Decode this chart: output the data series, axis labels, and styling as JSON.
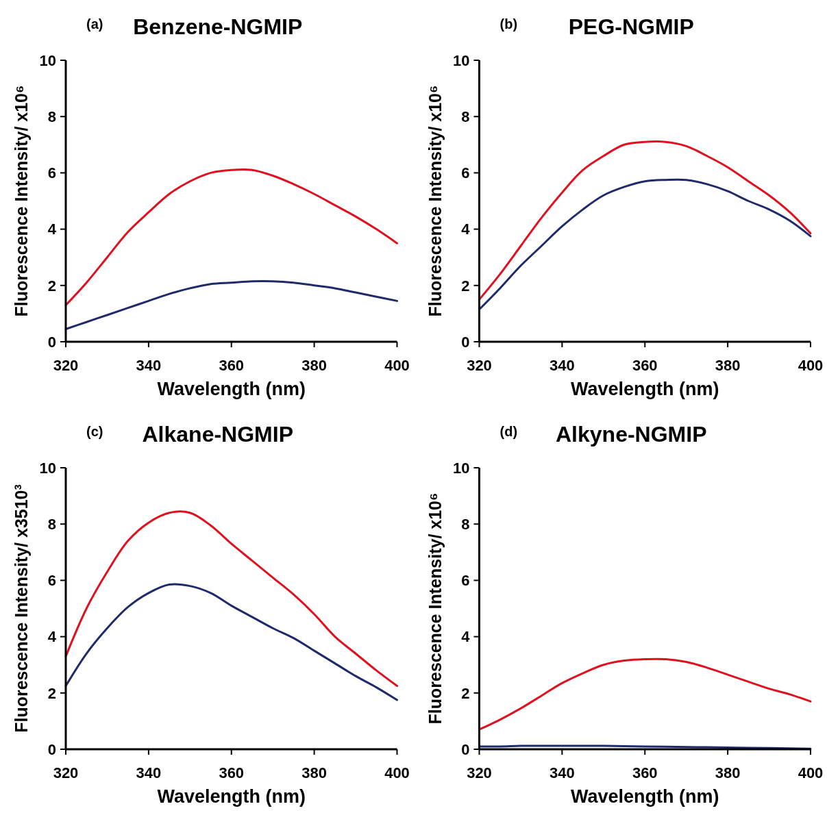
{
  "chart_data": [
    {
      "type": "line",
      "title": "Benzene-NGMIP",
      "annotations": [
        "(a)"
      ],
      "xlabel": "Wavelength (nm)",
      "ylabel": "Fluorescence Intensity/ x10⁶",
      "x": [
        320,
        325,
        330,
        335,
        340,
        345,
        350,
        355,
        360,
        365,
        370,
        375,
        380,
        385,
        390,
        395,
        400
      ],
      "xlim": [
        320,
        400
      ],
      "xticks": [
        320,
        340,
        360,
        380,
        400
      ],
      "ylim": [
        0,
        10
      ],
      "yticks": [
        0,
        2,
        4,
        6,
        8,
        10
      ],
      "grid": false,
      "marker": "none",
      "series": [
        {
          "color": "#e0101e",
          "values": [
            1.3,
            2.1,
            3.0,
            3.9,
            4.6,
            5.25,
            5.7,
            6.0,
            6.1,
            6.1,
            5.9,
            5.6,
            5.25,
            4.85,
            4.45,
            4.0,
            3.5
          ]
        },
        {
          "color": "#1f2a6b",
          "values": [
            0.45,
            0.7,
            0.95,
            1.2,
            1.45,
            1.7,
            1.9,
            2.05,
            2.1,
            2.15,
            2.15,
            2.1,
            2.0,
            1.9,
            1.75,
            1.6,
            1.45
          ]
        }
      ]
    },
    {
      "type": "line",
      "title": "PEG-NGMIP",
      "annotations": [
        "(b)"
      ],
      "xlabel": "Wavelength (nm)",
      "ylabel": "Fluorescence Intensity/ x10⁶",
      "x": [
        320,
        325,
        330,
        335,
        340,
        345,
        350,
        355,
        360,
        365,
        370,
        375,
        380,
        385,
        390,
        395,
        400
      ],
      "xlim": [
        320,
        400
      ],
      "xticks": [
        320,
        340,
        360,
        380,
        400
      ],
      "ylim": [
        0,
        10
      ],
      "yticks": [
        0,
        2,
        4,
        6,
        8,
        10
      ],
      "grid": false,
      "marker": "none",
      "series": [
        {
          "color": "#e0101e",
          "values": [
            1.5,
            2.4,
            3.4,
            4.4,
            5.3,
            6.1,
            6.6,
            7.0,
            7.1,
            7.1,
            6.95,
            6.6,
            6.2,
            5.7,
            5.2,
            4.6,
            3.85
          ]
        },
        {
          "color": "#1f2a6b",
          "values": [
            1.15,
            1.9,
            2.7,
            3.4,
            4.1,
            4.7,
            5.2,
            5.5,
            5.7,
            5.75,
            5.75,
            5.6,
            5.35,
            5.0,
            4.7,
            4.3,
            3.75
          ]
        }
      ]
    },
    {
      "type": "line",
      "title": "Alkane-NGMIP",
      "annotations": [
        "(c)"
      ],
      "xlabel": "Wavelength (nm)",
      "ylabel": "Fluorescence Intensity/ x3510³",
      "x": [
        320,
        325,
        330,
        335,
        340,
        345,
        350,
        355,
        360,
        365,
        370,
        375,
        380,
        385,
        390,
        395,
        400
      ],
      "xlim": [
        320,
        400
      ],
      "xticks": [
        320,
        340,
        360,
        380,
        400
      ],
      "ylim": [
        0,
        10
      ],
      "yticks": [
        0,
        2,
        4,
        6,
        8,
        10
      ],
      "grid": false,
      "marker": "none",
      "series": [
        {
          "color": "#e0101e",
          "values": [
            3.3,
            5.0,
            6.3,
            7.4,
            8.05,
            8.4,
            8.4,
            7.95,
            7.3,
            6.7,
            6.1,
            5.5,
            4.8,
            4.0,
            3.4,
            2.8,
            2.25
          ]
        },
        {
          "color": "#1f2a6b",
          "values": [
            2.25,
            3.4,
            4.3,
            5.05,
            5.55,
            5.85,
            5.8,
            5.55,
            5.1,
            4.7,
            4.3,
            3.95,
            3.5,
            3.05,
            2.6,
            2.2,
            1.75
          ]
        }
      ]
    },
    {
      "type": "line",
      "title": "Alkyne-NGMIP",
      "annotations": [
        "(d)"
      ],
      "xlabel": "Wavelength (nm)",
      "ylabel": "Fluorescence Intensity/ x10⁶",
      "x": [
        320,
        325,
        330,
        335,
        340,
        345,
        350,
        355,
        360,
        365,
        370,
        375,
        380,
        385,
        390,
        395,
        400
      ],
      "xlim": [
        320,
        400
      ],
      "xticks": [
        320,
        340,
        360,
        380,
        400
      ],
      "ylim": [
        0,
        10
      ],
      "yticks": [
        0,
        2,
        4,
        6,
        8,
        10
      ],
      "grid": false,
      "marker": "none",
      "series": [
        {
          "color": "#e0101e",
          "values": [
            0.7,
            1.05,
            1.45,
            1.9,
            2.35,
            2.7,
            3.0,
            3.15,
            3.2,
            3.2,
            3.1,
            2.9,
            2.65,
            2.4,
            2.15,
            1.95,
            1.7
          ]
        },
        {
          "color": "#1f2a6b",
          "values": [
            0.1,
            0.1,
            0.12,
            0.12,
            0.12,
            0.12,
            0.12,
            0.11,
            0.1,
            0.09,
            0.08,
            0.07,
            0.06,
            0.05,
            0.04,
            0.03,
            0.02
          ]
        }
      ]
    }
  ]
}
